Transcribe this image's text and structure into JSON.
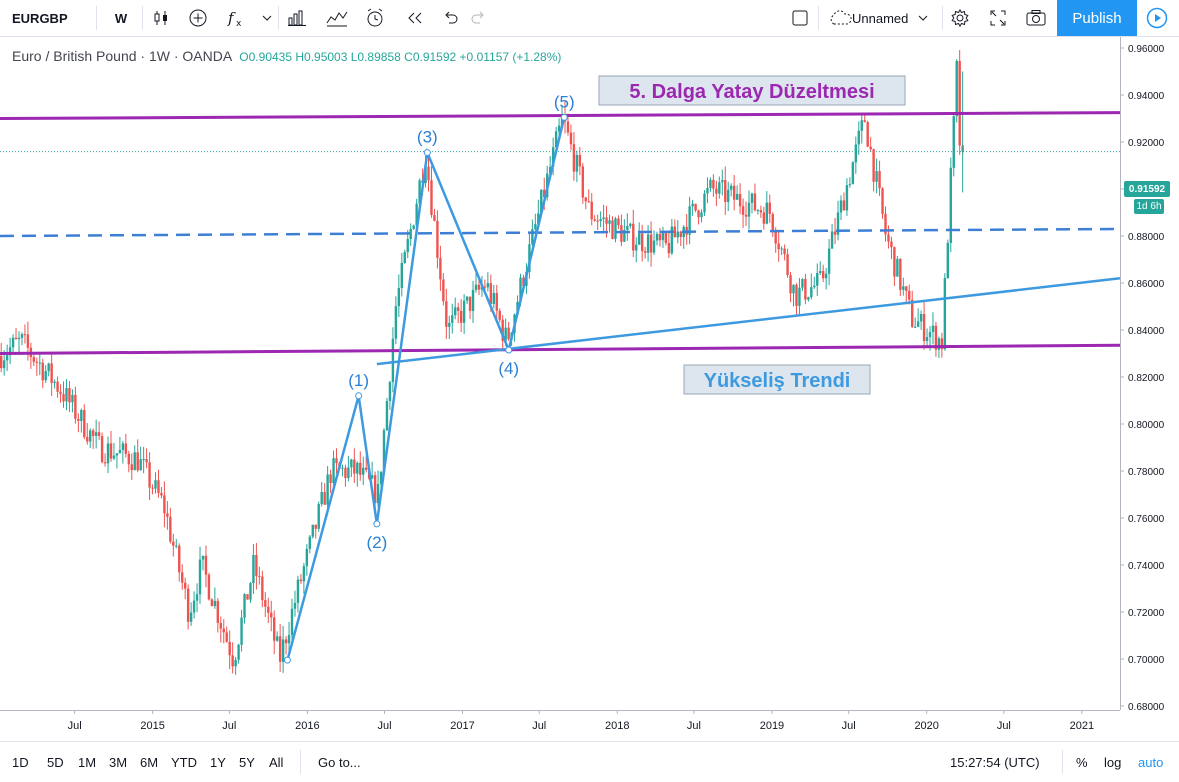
{
  "toolbar": {
    "symbol": "EURGBP",
    "interval": "W",
    "layout_name": "Unnamed",
    "publish_label": "Publish"
  },
  "legend": {
    "title": "Euro / British Pound · 1W · OANDA",
    "open": "O0.90435",
    "high": "H0.95003",
    "low": "L0.89858",
    "close": "C0.91592",
    "change": "+0.01157 (+1.28%)"
  },
  "price_tag": "0.91592",
  "time_tag": "1d 6h",
  "bottom": {
    "ranges": [
      "1D",
      "5D",
      "1M",
      "3M",
      "6M",
      "YTD",
      "1Y",
      "5Y",
      "All"
    ],
    "goto": "Go to...",
    "clock": "15:27:54 (UTC)",
    "pct": "%",
    "log": "log",
    "auto": "auto"
  },
  "colors": {
    "up": "#26a69a",
    "down": "#ef5350",
    "channel": "#9c27b0",
    "wave": "#3d9ae0",
    "accent": "#2196f3"
  },
  "chart_data": {
    "type": "candlestick",
    "instrument": "EURGBP",
    "timeframe": "1W",
    "source": "OANDA",
    "ylim": [
      0.68,
      0.96
    ],
    "y_ticks": [
      "0.96000",
      "0.94000",
      "0.92000",
      "0.90000",
      "0.88000",
      "0.86000",
      "0.84000",
      "0.82000",
      "0.80000",
      "0.78000",
      "0.76000",
      "0.74000",
      "0.72000",
      "0.70000",
      "0.68000"
    ],
    "x_ticks": [
      "Jul",
      "2015",
      "Jul",
      "2016",
      "Jul",
      "2017",
      "Jul",
      "2018",
      "Jul",
      "2019",
      "Jul",
      "2020",
      "Jul",
      "2021"
    ],
    "x_tick_dates": [
      "2014-07-01",
      "2015-01-01",
      "2015-07-01",
      "2016-01-01",
      "2016-07-01",
      "2017-01-01",
      "2017-07-01",
      "2018-01-01",
      "2018-07-01",
      "2019-01-01",
      "2019-07-01",
      "2020-01-01",
      "2020-07-01",
      "2021-01-01"
    ],
    "x_range": [
      "2014-01-06",
      "2021-04-01"
    ],
    "price_path": [
      {
        "date": "2014-01-06",
        "value": 0.829
      },
      {
        "date": "2014-03-01",
        "value": 0.835
      },
      {
        "date": "2014-06-01",
        "value": 0.815
      },
      {
        "date": "2014-09-01",
        "value": 0.79
      },
      {
        "date": "2014-12-01",
        "value": 0.785
      },
      {
        "date": "2015-02-01",
        "value": 0.765
      },
      {
        "date": "2015-04-01",
        "value": 0.72
      },
      {
        "date": "2015-05-01",
        "value": 0.74
      },
      {
        "date": "2015-07-15",
        "value": 0.7
      },
      {
        "date": "2015-09-01",
        "value": 0.74
      },
      {
        "date": "2015-11-01",
        "value": 0.7
      },
      {
        "date": "2015-12-15",
        "value": 0.73
      },
      {
        "date": "2016-03-01",
        "value": 0.78
      },
      {
        "date": "2016-05-01",
        "value": 0.78
      },
      {
        "date": "2016-06-20",
        "value": 0.77
      },
      {
        "date": "2016-08-01",
        "value": 0.85
      },
      {
        "date": "2016-10-10",
        "value": 0.915
      },
      {
        "date": "2016-12-01",
        "value": 0.84
      },
      {
        "date": "2017-03-01",
        "value": 0.86
      },
      {
        "date": "2017-04-20",
        "value": 0.835
      },
      {
        "date": "2017-08-29",
        "value": 0.93
      },
      {
        "date": "2017-11-01",
        "value": 0.89
      },
      {
        "date": "2018-02-01",
        "value": 0.88
      },
      {
        "date": "2018-05-01",
        "value": 0.875
      },
      {
        "date": "2018-08-15",
        "value": 0.9
      },
      {
        "date": "2019-01-01",
        "value": 0.89
      },
      {
        "date": "2019-03-01",
        "value": 0.855
      },
      {
        "date": "2019-05-01",
        "value": 0.86
      },
      {
        "date": "2019-08-12",
        "value": 0.93
      },
      {
        "date": "2019-10-01",
        "value": 0.88
      },
      {
        "date": "2019-12-01",
        "value": 0.845
      },
      {
        "date": "2020-02-10",
        "value": 0.835
      },
      {
        "date": "2020-03-16",
        "value": 0.95
      },
      {
        "date": "2020-03-24",
        "value": 0.9159
      }
    ],
    "wave_points": [
      {
        "label": "(1)",
        "date": "2016-05-01",
        "value": 0.812
      },
      {
        "label": "(2)",
        "date": "2016-06-13",
        "value": 0.7575
      },
      {
        "label": "(3)",
        "date": "2016-10-10",
        "value": 0.9155
      },
      {
        "label": "(4)",
        "date": "2017-04-20",
        "value": 0.8315
      },
      {
        "label": "(5)",
        "date": "2017-08-29",
        "value": 0.9305
      }
    ],
    "wave_start": {
      "date": "2015-11-15",
      "value": 0.6995
    },
    "lines": [
      {
        "name": "upper-channel",
        "style": "solid",
        "color": "#9c27b0",
        "from": {
          "date": "2014-01-06",
          "value": 0.93
        },
        "to": {
          "date": "2021-04-01",
          "value": 0.9325
        }
      },
      {
        "name": "lower-channel",
        "style": "solid",
        "color": "#9c27b0",
        "from": {
          "date": "2014-01-06",
          "value": 0.83
        },
        "to": {
          "date": "2021-04-01",
          "value": 0.8335
        }
      },
      {
        "name": "mid-channel",
        "style": "dashed",
        "color": "#3d7fd6",
        "from": {
          "date": "2014-01-06",
          "value": 0.88
        },
        "to": {
          "date": "2021-04-01",
          "value": 0.883
        }
      },
      {
        "name": "trend-line",
        "style": "solid",
        "color": "#3d9ae0",
        "from": {
          "date": "2016-06-13",
          "value": 0.8255
        },
        "to": {
          "date": "2021-04-01",
          "value": 0.862
        }
      }
    ],
    "annotations": [
      {
        "text": "5. Dalga Yatay Düzeltmesi",
        "color": "#9c27b0"
      },
      {
        "text": "Yükseliş Trendi",
        "color": "#3d9ae0"
      }
    ],
    "last_price": 0.91592
  }
}
